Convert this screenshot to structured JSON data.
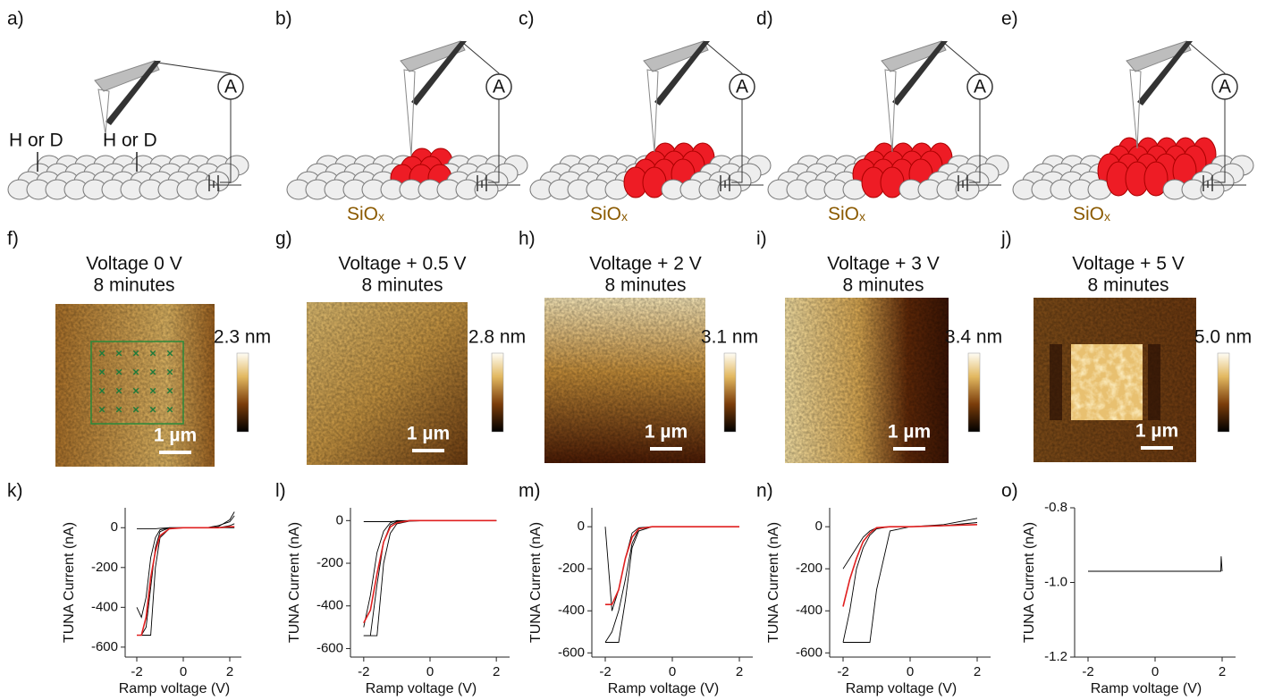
{
  "schematics": [
    {
      "label": "a)",
      "meter": "A",
      "tip_labels": [
        "H or D",
        "H or D"
      ]
    },
    {
      "label": "b)",
      "meter": "A",
      "substrate": {
        "base": "SiO",
        "sub": "x"
      }
    },
    {
      "label": "c)",
      "meter": "A",
      "substrate": {
        "base": "SiO",
        "sub": "x"
      }
    },
    {
      "label": "d)",
      "meter": "A",
      "substrate": {
        "base": "SiO",
        "sub": "x"
      }
    },
    {
      "label": "e)",
      "meter": "A",
      "substrate": {
        "base": "SiO",
        "sub": "x"
      }
    }
  ],
  "images": [
    {
      "label": "f)",
      "title": [
        "Voltage 0 V",
        "8 minutes"
      ],
      "colorbar_label": "2.3 nm",
      "scale_bar": "1 µm"
    },
    {
      "label": "g)",
      "title": [
        "Voltage + 0.5 V",
        "8 minutes"
      ],
      "colorbar_label": "2.8 nm",
      "scale_bar": "1 µm"
    },
    {
      "label": "h)",
      "title": [
        "Voltage + 2 V",
        "8 minutes"
      ],
      "colorbar_label": "3.1 nm",
      "scale_bar": "1 µm"
    },
    {
      "label": "i)",
      "title": [
        "Voltage + 3 V",
        "8 minutes"
      ],
      "colorbar_label": "3.4 nm",
      "scale_bar": "1 µm"
    },
    {
      "label": "j)",
      "title": [
        "Voltage + 5 V",
        "8 minutes"
      ],
      "colorbar_label": "5.0 nm",
      "scale_bar": "1 µm"
    }
  ],
  "chart_data": [
    {
      "type": "line",
      "label": "k)",
      "x_label": "Ramp voltage (V)",
      "y_label": "TUNA Current (nA)",
      "xlim": [
        -2.5,
        2.5
      ],
      "xticks": [
        -2,
        0,
        2
      ],
      "ylim": [
        -650,
        100
      ],
      "yticks": [
        0,
        -200,
        -400,
        -600
      ],
      "x": [
        -2,
        -1.8,
        -1.6,
        -1.4,
        -1.2,
        -1,
        -0.6,
        0,
        1,
        1.5,
        2,
        2.2
      ],
      "series": [
        {
          "color": "#000000",
          "values": [
            -540,
            -540,
            -500,
            -300,
            -100,
            -20,
            0,
            0,
            0,
            0,
            10,
            20
          ]
        },
        {
          "color": "#000000",
          "values": [
            -540,
            -540,
            -540,
            -540,
            -200,
            -50,
            -5,
            0,
            0,
            5,
            40,
            80
          ]
        },
        {
          "color": "#000000",
          "values": [
            -400,
            -450,
            -350,
            -150,
            -50,
            -10,
            0,
            0,
            0,
            10,
            30,
            60
          ]
        },
        {
          "color": "#000000",
          "values": [
            -5,
            -5,
            -5,
            -5,
            -5,
            -3,
            0,
            0,
            0,
            0,
            0,
            0
          ]
        },
        {
          "color": "#e02020",
          "values": [
            -540,
            -540,
            -450,
            -250,
            -120,
            -40,
            -5,
            0,
            0,
            0,
            5,
            5
          ]
        }
      ]
    },
    {
      "type": "line",
      "label": "l)",
      "x_label": "Ramp voltage (V)",
      "y_label": "TUNA Current (nA)",
      "xlim": [
        -2.4,
        2.4
      ],
      "xticks": [
        -2,
        0,
        2
      ],
      "ylim": [
        -640,
        60
      ],
      "yticks": [
        0,
        -200,
        -400,
        -600
      ],
      "x": [
        -2,
        -1.8,
        -1.6,
        -1.4,
        -1.2,
        -1,
        -0.6,
        0,
        1,
        2
      ],
      "series": [
        {
          "color": "#000000",
          "values": [
            -540,
            -540,
            -300,
            -100,
            -20,
            -5,
            0,
            0,
            0,
            0
          ]
        },
        {
          "color": "#000000",
          "values": [
            -500,
            -350,
            -150,
            -50,
            -10,
            0,
            0,
            0,
            0,
            0
          ]
        },
        {
          "color": "#000000",
          "values": [
            -5,
            -5,
            -5,
            -5,
            -5,
            -3,
            -2,
            0,
            0,
            0
          ]
        },
        {
          "color": "#000000",
          "values": [
            -540,
            -540,
            -540,
            -200,
            -60,
            -15,
            -2,
            0,
            0,
            0
          ]
        },
        {
          "color": "#e02020",
          "values": [
            -480,
            -420,
            -250,
            -100,
            -30,
            -10,
            0,
            0,
            0,
            0
          ]
        }
      ]
    },
    {
      "type": "line",
      "label": "m)",
      "x_label": "Ramp voltage (V)",
      "y_label": "TUNA Current (nA)",
      "xlim": [
        -2.4,
        2.4
      ],
      "xticks": [
        -2,
        0,
        2
      ],
      "ylim": [
        -620,
        90
      ],
      "yticks": [
        0,
        -200,
        -400,
        -600
      ],
      "x": [
        -2,
        -1.8,
        -1.6,
        -1.4,
        -1.2,
        -1,
        -0.6,
        0,
        1,
        2
      ],
      "series": [
        {
          "color": "#000000",
          "values": [
            -550,
            -550,
            -550,
            -350,
            -100,
            -20,
            0,
            0,
            0,
            0
          ]
        },
        {
          "color": "#000000",
          "values": [
            0,
            -400,
            -300,
            -150,
            -30,
            -5,
            0,
            0,
            0,
            0
          ]
        },
        {
          "color": "#000000",
          "values": [
            -550,
            -500,
            -400,
            -250,
            -80,
            -10,
            0,
            0,
            0,
            0
          ]
        },
        {
          "color": "#e02020",
          "values": [
            -370,
            -370,
            -300,
            -150,
            -50,
            -10,
            0,
            0,
            0,
            0
          ]
        }
      ]
    },
    {
      "type": "line",
      "label": "n)",
      "x_label": "Ramp voltage (V)",
      "y_label": "TUNA Current (nA)",
      "xlim": [
        -2.4,
        2.4
      ],
      "xticks": [
        -2,
        0,
        2
      ],
      "ylim": [
        -620,
        90
      ],
      "yticks": [
        0,
        -200,
        -400,
        -600
      ],
      "x": [
        -2,
        -1.8,
        -1.6,
        -1.4,
        -1.2,
        -1,
        -0.6,
        0,
        1,
        2
      ],
      "series": [
        {
          "color": "#000000",
          "values": [
            -550,
            -550,
            -550,
            -550,
            -550,
            -300,
            -20,
            0,
            10,
            40
          ]
        },
        {
          "color": "#000000",
          "values": [
            -550,
            -400,
            -200,
            -100,
            -40,
            -10,
            0,
            0,
            5,
            20
          ]
        },
        {
          "color": "#000000",
          "values": [
            -200,
            -150,
            -100,
            -50,
            -20,
            -5,
            0,
            0,
            5,
            10
          ]
        },
        {
          "color": "#e02020",
          "values": [
            -380,
            -250,
            -150,
            -70,
            -30,
            -5,
            0,
            0,
            5,
            10
          ]
        }
      ]
    },
    {
      "type": "line",
      "label": "o)",
      "x_label": "Ramp voltage (V)",
      "y_label": "TUNA Current (nA)",
      "xlim": [
        -2.4,
        2.4
      ],
      "xticks": [
        -2,
        0,
        2
      ],
      "ylim": [
        -1.2,
        -0.8
      ],
      "yticks": [
        -0.8,
        {
          "value": -1.0,
          "label": "-1.0"
        },
        -1.2
      ],
      "x": [
        -2,
        0,
        1.96,
        1.97,
        2
      ],
      "series": [
        {
          "color": "#000000",
          "values": [
            -0.97,
            -0.97,
            -0.97,
            -0.93,
            -0.97
          ]
        }
      ]
    }
  ]
}
